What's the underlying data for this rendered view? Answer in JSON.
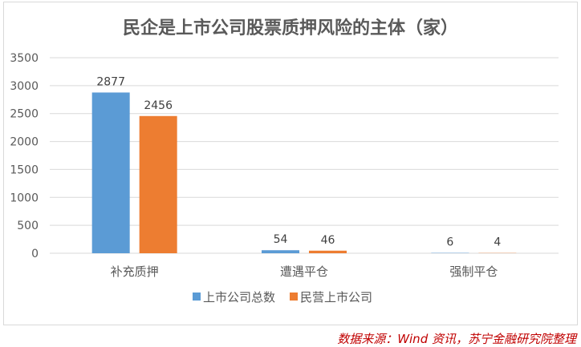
{
  "chart_data": {
    "type": "bar",
    "title": "民企是上市公司股票质押风险的主体（家）",
    "categories": [
      "补充质押",
      "遭遇平仓",
      "强制平仓"
    ],
    "series": [
      {
        "name": "上市公司总数",
        "values": [
          2877,
          54,
          6
        ],
        "color": "#5b9bd5"
      },
      {
        "name": "民营上市公司",
        "values": [
          2456,
          46,
          4
        ],
        "color": "#ed7d31"
      }
    ],
    "ylim": [
      0,
      3500
    ],
    "yticks": [
      0,
      500,
      1000,
      1500,
      2000,
      2500,
      3000,
      3500
    ],
    "grid": true,
    "legend": "bottom",
    "xlabel": "",
    "ylabel": ""
  },
  "source_note": "数据来源：Wind 资讯，苏宁金融研究院整理"
}
